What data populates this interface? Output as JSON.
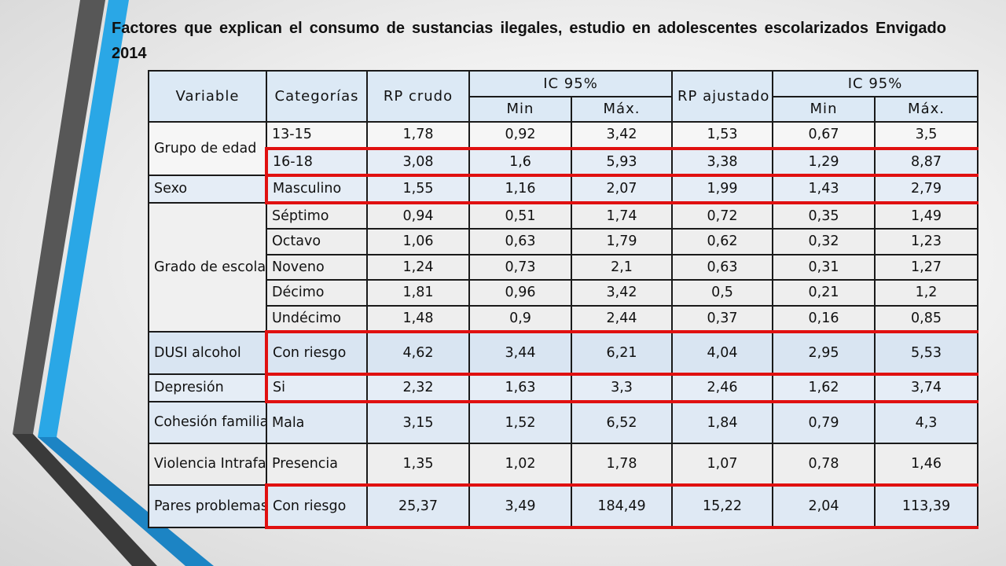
{
  "title": "Factores que explican el consumo de sustancias ilegales, estudio en adolescentes escolarizados Envigado 2014",
  "headers": {
    "variable": "Variable",
    "categorias": "Categorías",
    "rp_crudo": "RP crudo",
    "ic1": "IC 95%",
    "rp_ajustado": "RP ajustado",
    "ic2": "IC 95%",
    "min": "Min",
    "max": "Máx."
  },
  "groups": [
    {
      "variable": "Grupo de edad"
    },
    {
      "variable": "Sexo"
    },
    {
      "variable": "Grado de escolaridad"
    },
    {
      "variable": "DUSI alcohol"
    },
    {
      "variable": "Depresión"
    },
    {
      "variable": "Cohesión familiar"
    },
    {
      "variable": "Violencia Intrafamiliar"
    },
    {
      "variable": "Pares problemas"
    }
  ],
  "rows": [
    {
      "categoria": "13-15",
      "rp_crudo": "1,78",
      "min1": "0,92",
      "max1": "3,42",
      "rp_ajustado": "1,53",
      "min2": "0,67",
      "max2": "3,5"
    },
    {
      "categoria": "16-18",
      "rp_crudo": "3,08",
      "min1": "1,6",
      "max1": "5,93",
      "rp_ajustado": "3,38",
      "min2": "1,29",
      "max2": "8,87"
    },
    {
      "categoria": "Masculino",
      "rp_crudo": "1,55",
      "min1": "1,16",
      "max1": "2,07",
      "rp_ajustado": "1,99",
      "min2": "1,43",
      "max2": "2,79"
    },
    {
      "categoria": "Séptimo",
      "rp_crudo": "0,94",
      "min1": "0,51",
      "max1": "1,74",
      "rp_ajustado": "0,72",
      "min2": "0,35",
      "max2": "1,49"
    },
    {
      "categoria": "Octavo",
      "rp_crudo": "1,06",
      "min1": "0,63",
      "max1": "1,79",
      "rp_ajustado": "0,62",
      "min2": "0,32",
      "max2": "1,23"
    },
    {
      "categoria": "Noveno",
      "rp_crudo": "1,24",
      "min1": "0,73",
      "max1": "2,1",
      "rp_ajustado": "0,63",
      "min2": "0,31",
      "max2": "1,27"
    },
    {
      "categoria": "Décimo",
      "rp_crudo": "1,81",
      "min1": "0,96",
      "max1": "3,42",
      "rp_ajustado": "0,5",
      "min2": "0,21",
      "max2": "1,2"
    },
    {
      "categoria": "Undécimo",
      "rp_crudo": "1,48",
      "min1": "0,9",
      "max1": "2,44",
      "rp_ajustado": "0,37",
      "min2": "0,16",
      "max2": "0,85"
    },
    {
      "categoria": "Con riesgo",
      "rp_crudo": "4,62",
      "min1": "3,44",
      "max1": "6,21",
      "rp_ajustado": "4,04",
      "min2": "2,95",
      "max2": "5,53"
    },
    {
      "categoria": "Si",
      "rp_crudo": "2,32",
      "min1": "1,63",
      "max1": "3,3",
      "rp_ajustado": "2,46",
      "min2": "1,62",
      "max2": "3,74"
    },
    {
      "categoria": "Mala",
      "rp_crudo": "3,15",
      "min1": "1,52",
      "max1": "6,52",
      "rp_ajustado": "1,84",
      "min2": "0,79",
      "max2": "4,3"
    },
    {
      "categoria": "Presencia",
      "rp_crudo": "1,35",
      "min1": "1,02",
      "max1": "1,78",
      "rp_ajustado": "1,07",
      "min2": "0,78",
      "max2": "1,46"
    },
    {
      "categoria": "Con riesgo",
      "rp_crudo": "25,37",
      "min1": "3,49",
      "max1": "184,49",
      "rp_ajustado": "15,22",
      "min2": "2,04",
      "max2": "113,39"
    }
  ],
  "colors": {
    "highlight": "#e01010",
    "header_fill": "#dce9f5",
    "stripe_blue": "#29a8e8",
    "stripe_gray": "#5a5a5a"
  }
}
